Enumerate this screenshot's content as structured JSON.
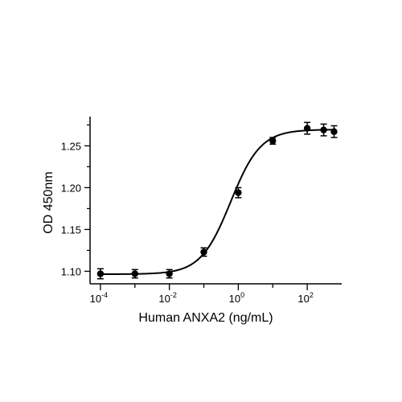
{
  "chart_data": {
    "type": "scatter",
    "xlabel": "Human ANXA2 (ng/mL)",
    "ylabel": "OD 450nm",
    "x_scale": "log",
    "xlim": [
      5e-05,
      1000
    ],
    "ylim": [
      1.085,
      1.285
    ],
    "x_ticks": [
      {
        "value": 0.0001,
        "base": "10",
        "exp": "-4"
      },
      {
        "value": 0.01,
        "base": "10",
        "exp": "-2"
      },
      {
        "value": 1,
        "base": "10",
        "exp": "0"
      },
      {
        "value": 100,
        "base": "10",
        "exp": "2"
      }
    ],
    "y_ticks": [
      {
        "value": 1.1,
        "label": "1.10"
      },
      {
        "value": 1.15,
        "label": "1.15"
      },
      {
        "value": 1.2,
        "label": "1.20"
      },
      {
        "value": 1.25,
        "label": "1.25"
      }
    ],
    "points": [
      {
        "x": 0.0001,
        "y": 1.097,
        "err": 0.006
      },
      {
        "x": 0.001,
        "y": 1.097,
        "err": 0.005
      },
      {
        "x": 0.01,
        "y": 1.097,
        "err": 0.005
      },
      {
        "x": 0.1,
        "y": 1.123,
        "err": 0.005
      },
      {
        "x": 1,
        "y": 1.194,
        "err": 0.006
      },
      {
        "x": 10,
        "y": 1.256,
        "err": 0.004
      },
      {
        "x": 100,
        "y": 1.271,
        "err": 0.007
      },
      {
        "x": 300,
        "y": 1.269,
        "err": 0.007
      },
      {
        "x": 600,
        "y": 1.267,
        "err": 0.007
      }
    ],
    "fit": {
      "type": "4PL",
      "bottom": 1.0965,
      "top": 1.2695,
      "ec50": 0.6,
      "hill": 1.0
    },
    "grid": false,
    "legend": "none",
    "color": "#000000"
  }
}
